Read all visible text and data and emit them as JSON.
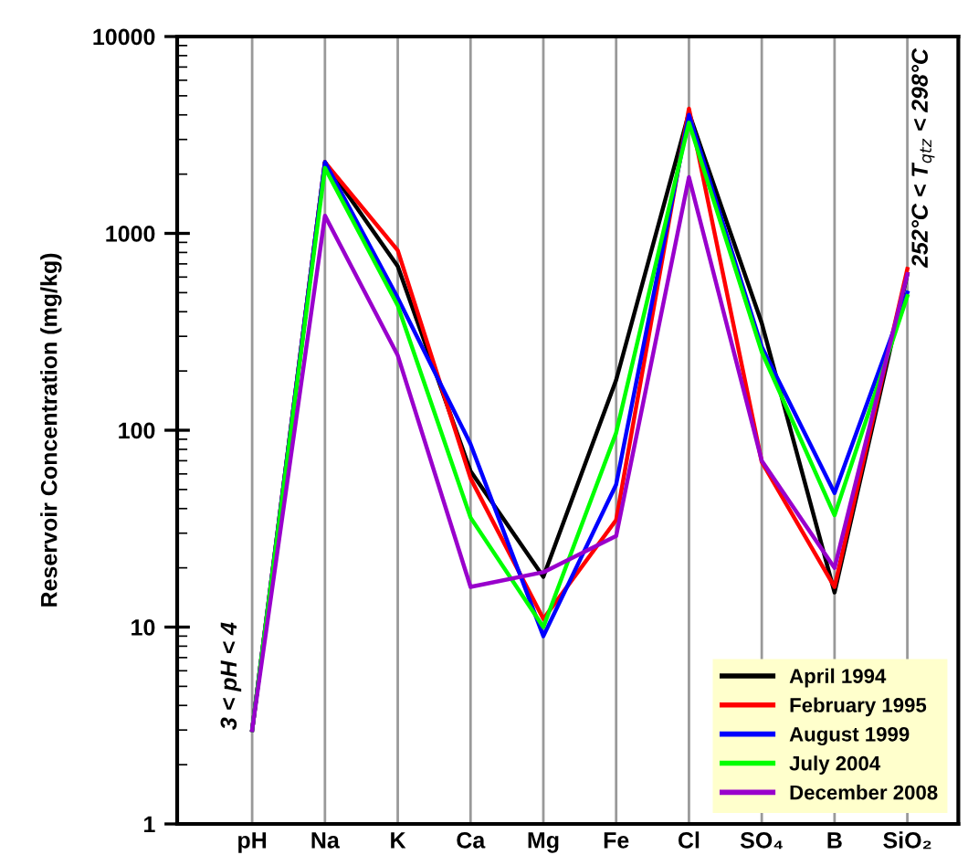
{
  "chart_data": {
    "type": "line",
    "ylabel": "Reservoir Concentration (mg/kg)",
    "categories": [
      "pH",
      "Na",
      "K",
      "Ca",
      "Mg",
      "Fe",
      "Cl",
      "SO₄",
      "B",
      "SiO₂"
    ],
    "series": [
      {
        "name": "April 1994",
        "color": "#000000",
        "values": [
          3,
          2300,
          680,
          62,
          18,
          180,
          4100,
          350,
          15,
          620
        ]
      },
      {
        "name": "February 1995",
        "color": "#ff0000",
        "values": [
          3,
          2300,
          820,
          57,
          11,
          35,
          4300,
          69,
          16,
          660
        ]
      },
      {
        "name": "August 1999",
        "color": "#0000ff",
        "values": [
          3,
          2300,
          470,
          85,
          9,
          53,
          4000,
          265,
          48,
          500
        ]
      },
      {
        "name": "July 2004",
        "color": "#00ff00",
        "values": [
          3,
          2150,
          430,
          36,
          10,
          97,
          3650,
          250,
          37,
          480
        ]
      },
      {
        "name": "December 2008",
        "color": "#9900cc",
        "values": [
          3,
          1230,
          240,
          16,
          19,
          29,
          1930,
          70,
          20,
          620
        ]
      }
    ],
    "log": "y",
    "ylim": [
      1,
      10000
    ],
    "yticks": [
      1,
      10,
      100,
      1000,
      10000
    ],
    "grid": "x",
    "legend": "bottom right",
    "annotations": [
      {
        "text": "3 < pH < 4",
        "x": "pH",
        "y": 3
      },
      "252°C < T$_{qtz}$ < 298°C"
    ]
  }
}
